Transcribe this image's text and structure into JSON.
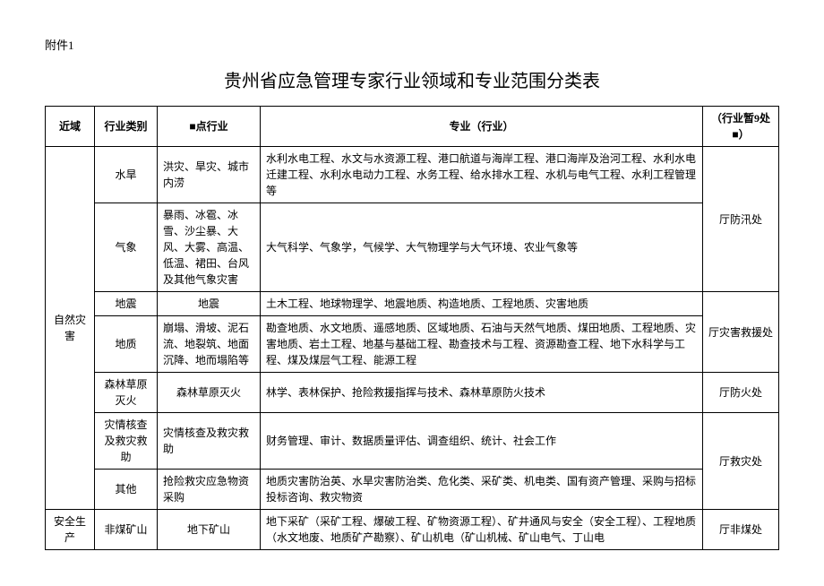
{
  "attachment_label": "附件1",
  "title": "贵州省应急管理专家行业领域和专业范围分类表",
  "headers": {
    "domain": "近域",
    "category": "行业类别",
    "key_industry": "■点行业",
    "major": "专业（行业）",
    "dept": "（行业暂9处■）"
  },
  "rows": [
    {
      "domain": "自然灾害",
      "category": "水旱",
      "key": "洪灾、旱灾、城市内涝",
      "major": "水利水电工程、水文与水资源工程、港口航道与海岸工程、港口海岸及治河工程、水利水电迁建工程、水利水电动力工程、水务工程、给水排水工程、水机与电气工程、水利工程管理等",
      "dept": "厅防汛处"
    },
    {
      "category": "气象",
      "key": "暴雨、冰雹、冰雪、沙尘暴、大风、大雾、高温、低温、裙田、台风及其他气象灾害",
      "major": "大气科学、气象学，气候学、大气物理学与大气环境、农业气象等"
    },
    {
      "category": "地震",
      "key": "地震",
      "major": "土木工程、地球物理学、地震地质、构造地质、工程地质、灾害地质",
      "dept": "厅灾害救援处"
    },
    {
      "category": "地质",
      "key": "崩塌、滑坡、泥石流、地裂筑、地面沉降、地而塌陷等",
      "major": "勘查地质、水文地质、遥感地质、区域地质、石油与天然气地质、煤田地质、工程地质、灾害地质、岩土工程、地基与基础工程、勘查技术与工程、资源勘查工程、地下水科学与工程、煤及煤层气工程、能源工程"
    },
    {
      "category": "森林草原灭火",
      "key": "森林草原灭火",
      "major": "林学、表林保护、抢险救援指挥与技术、森林草原防火技术",
      "dept": "厅防火处"
    },
    {
      "category": "灾情核查及救灾救助",
      "key": "灾情核查及救灾救助",
      "major": "财务管理、审计、数据质量评估、调查组织、统计、社会工作",
      "dept": "厅救灾处"
    },
    {
      "category": "其他",
      "key": "抢险救灾应急物资采购",
      "major": "地质灾害防治英、水旱灾害防治类、危化类、采矿类、机电类、国有资产管理、采购与招标投标咨询、救灾物资"
    },
    {
      "domain": "安全生产",
      "category": "非煤矿山",
      "key": "地下矿山",
      "major": "地下采矿（采矿工程、爆破工程、矿物资源工程）、矿井通风与安全（安全工程）、工程地质（水文地废、地质矿产勘察）、矿山机电（矿山机械、矿山电气、丁山电",
      "dept": "厅非煤处"
    }
  ]
}
